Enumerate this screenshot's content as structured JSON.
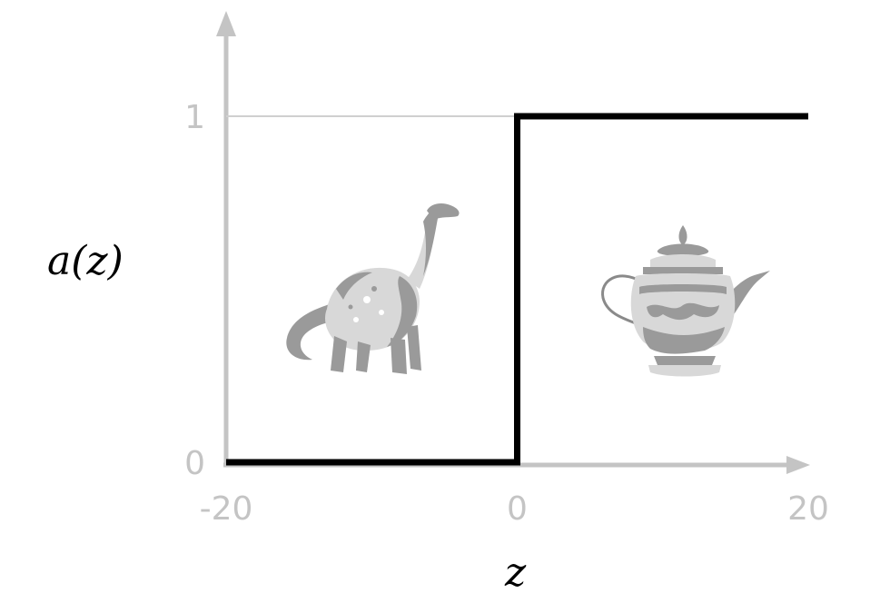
{
  "chart_data": {
    "type": "line",
    "xlabel": "z",
    "ylabel": "a(z)",
    "xlim": [
      -20,
      20
    ],
    "ylim": [
      0,
      1
    ],
    "x_ticks": [
      -20,
      0,
      20
    ],
    "y_ticks": [
      0,
      1
    ],
    "grid": false,
    "series": [
      {
        "x": [
          -20,
          0,
          0,
          20
        ],
        "y": [
          0,
          0,
          1,
          1
        ],
        "color": "#000000"
      }
    ]
  },
  "colors": {
    "axis": "#c4c4c4",
    "line": "#000000",
    "illustration": "#9a9a9a"
  },
  "illustrations": {
    "left": "dinosaur-icon",
    "right": "teapot-icon"
  }
}
